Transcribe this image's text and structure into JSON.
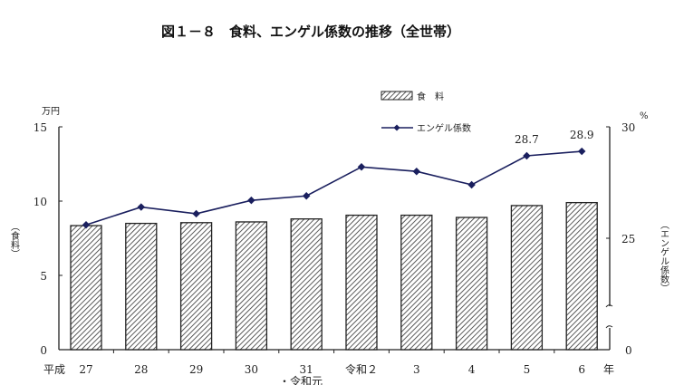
{
  "chart_data": {
    "type": "bar+line",
    "title": "図１－８　食料、エンゲル係数の推移（全世帯）",
    "categories": [
      "27",
      "28",
      "29",
      "30",
      "31",
      "令和２",
      "3",
      "4",
      "5",
      "6"
    ],
    "era_label": "平成",
    "sub_label_31": "・令和元",
    "x_unit": "年",
    "left_axis": {
      "label": "（食料）",
      "unit": "万円",
      "ylim": [
        0,
        15
      ],
      "ticks": [
        "0",
        "5",
        "10",
        "15"
      ]
    },
    "right_axis": {
      "label": "（エンゲル係数）",
      "unit": "%",
      "ylim": [
        25,
        30
      ],
      "ticks": [
        "0",
        "25",
        "30"
      ],
      "broken": true
    },
    "series": [
      {
        "name": "食　料",
        "type": "bar",
        "axis": "left",
        "values": [
          8.35,
          8.5,
          8.55,
          8.6,
          8.8,
          9.05,
          9.05,
          8.9,
          9.7,
          9.9
        ]
      },
      {
        "name": "エンゲル係数",
        "type": "line",
        "axis": "right",
        "values": [
          25.6,
          26.4,
          26.1,
          26.7,
          26.9,
          28.2,
          28.0,
          27.4,
          28.7,
          28.9
        ]
      }
    ],
    "data_labels": [
      "28.7",
      "28.9"
    ],
    "legend": "top-center",
    "colors": {
      "line": "#1a1f5e",
      "bar_hatch": "#333333"
    }
  }
}
